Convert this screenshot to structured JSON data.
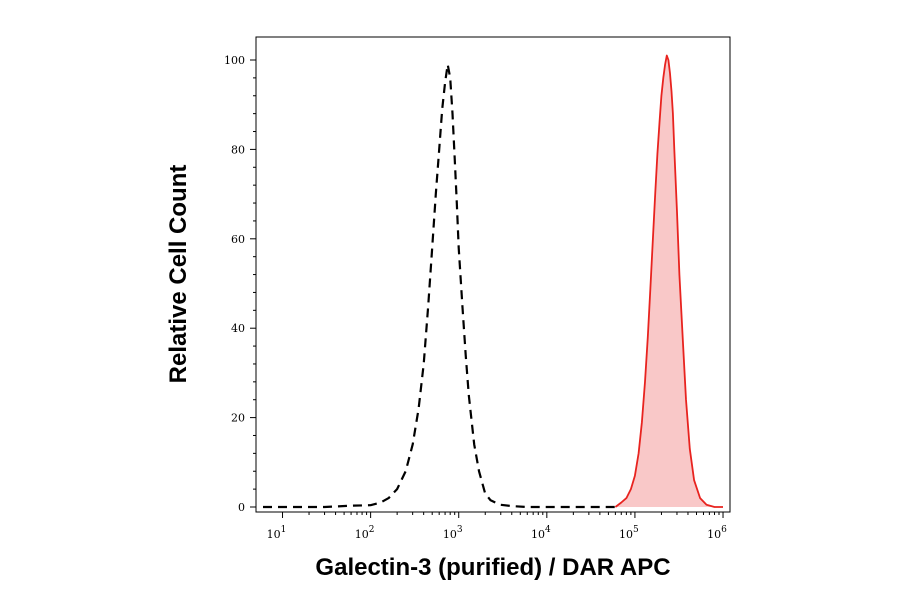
{
  "chart_data": {
    "type": "area",
    "title": "",
    "xlabel": "Galectin-3 (purified) / DAR APC",
    "ylabel": "Relative Cell Count",
    "x_scale": "log",
    "xlim": [
      5,
      1200000
    ],
    "ylim": [
      0,
      105
    ],
    "grid": false,
    "y_ticks": [
      0,
      20,
      40,
      60,
      80,
      100
    ],
    "x_ticks": [
      {
        "value": 10,
        "base": "10",
        "exp": "1"
      },
      {
        "value": 100,
        "base": "10",
        "exp": "2"
      },
      {
        "value": 1000,
        "base": "10",
        "exp": "3"
      },
      {
        "value": 10000,
        "base": "10",
        "exp": "4"
      },
      {
        "value": 100000,
        "base": "10",
        "exp": "5"
      },
      {
        "value": 1000000,
        "base": "10",
        "exp": "6"
      }
    ],
    "series": [
      {
        "style": "dashed",
        "color": "#000000",
        "fill": "none",
        "x": [
          6,
          30,
          60,
          100,
          130,
          160,
          200,
          250,
          300,
          350,
          400,
          450,
          500,
          550,
          600,
          650,
          700,
          750,
          800,
          850,
          900,
          950,
          1000,
          1100,
          1200,
          1300,
          1500,
          1700,
          2000,
          2300,
          2600,
          3000,
          4000,
          6000,
          10000,
          30000,
          60000
        ],
        "y": [
          0,
          0,
          0.3,
          0.4,
          1,
          2,
          4,
          8,
          14,
          22,
          32,
          45,
          58,
          70,
          80,
          89,
          95,
          99,
          96,
          88,
          78,
          68,
          58,
          45,
          34,
          25,
          14,
          8,
          3,
          1.5,
          1,
          0.5,
          0.2,
          0,
          0,
          0,
          0
        ]
      },
      {
        "style": "solid",
        "color": "#e8231f",
        "fill": "#f9c8c8",
        "x": [
          60000,
          70000,
          80000,
          90000,
          100000,
          110000,
          120000,
          130000,
          140000,
          150000,
          160000,
          170000,
          180000,
          190000,
          200000,
          210000,
          220000,
          230000,
          240000,
          250000,
          260000,
          270000,
          280000,
          300000,
          320000,
          350000,
          380000,
          420000,
          470000,
          550000,
          650000,
          800000,
          1000000
        ],
        "y": [
          0,
          1,
          2,
          4,
          7,
          12,
          19,
          28,
          38,
          49,
          60,
          70,
          79,
          86,
          92,
          96,
          99,
          101,
          100,
          97,
          93,
          88,
          80,
          66,
          52,
          37,
          24,
          13,
          6,
          2,
          0.5,
          0,
          0
        ]
      }
    ]
  }
}
